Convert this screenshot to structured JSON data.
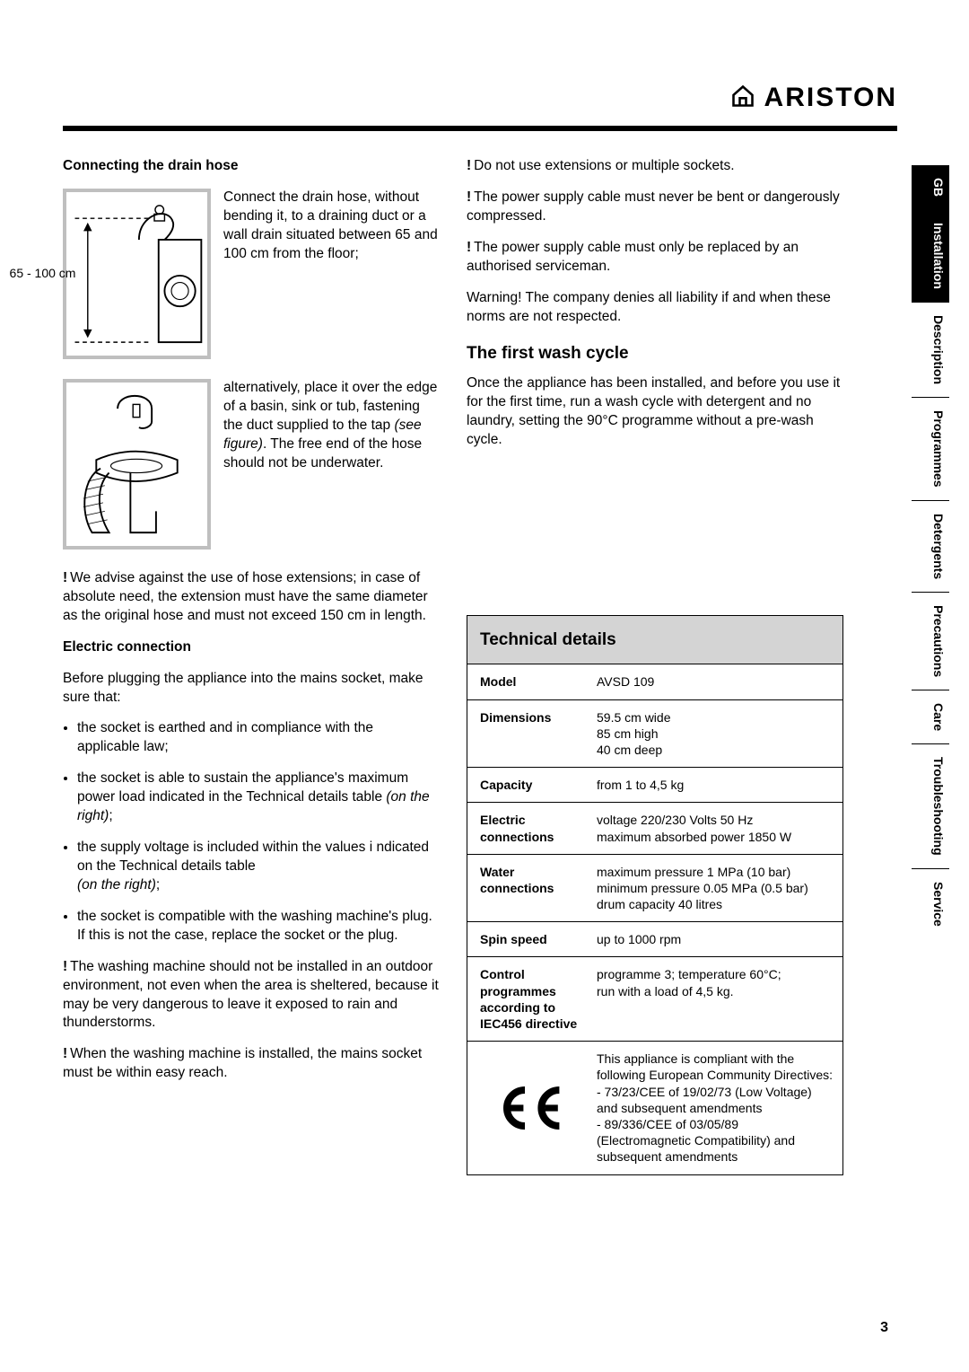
{
  "brand": {
    "name": "ARISTON"
  },
  "page_number": "3",
  "left": {
    "heading_drain": "Connecting the drain hose",
    "fig1_label": "65 - 100 cm",
    "p_drain1": "Connect the drain hose, without bending it, to a draining duct or a wall drain situated between 65 and 100 cm from the floor;",
    "p_drain2a": "alternatively, place it over the edge of a basin, sink or tub, fastening the duct supplied to the tap ",
    "p_drain2_ital": "(see figure)",
    "p_drain2b": ". The free end of the hose should not be underwater.",
    "warn_ext": "We advise against the use of hose extensions; in case of absolute need, the extension must have the same diameter as the original hose and must not exceed 150 cm in length.",
    "heading_elec": "Electric connection",
    "p_elec_intro": "Before plugging the appliance into the mains socket, make sure that:",
    "bullets": [
      {
        "text": "the socket is earthed and in compliance with the applicable law;"
      },
      {
        "text_a": "the socket is able to sustain the appliance's maximum power load indicated in the Technical details table ",
        "ital": "(on the right)",
        "text_b": ";"
      },
      {
        "text_a": "the supply voltage is included within the values i ndicated on the Technical details table",
        "br": true,
        "ital": "(on the right)",
        "text_b": ";"
      },
      {
        "text": "the socket is compatible with the washing machine's plug. If this is not the case, replace the socket or the plug."
      }
    ],
    "warn_outdoor": "The washing machine should not be installed in an outdoor environment, not even when the area is sheltered, because it may be very dangerous to leave it exposed to rain and thunderstorms.",
    "warn_reach": "When the washing machine is installed, the mains socket must be within easy reach."
  },
  "right": {
    "warn_sockets": "Do not use extensions or multiple sockets.",
    "warn_cable_bent": "The  power supply cable must never be bent or dangerously compressed.",
    "warn_cable_replace": "The power supply cable must only be replaced by an authorised serviceman.",
    "warning_liability": "Warning! The company denies all liability if and when these norms are not respected.",
    "heading_first_wash": "The first wash cycle",
    "p_first_wash": "Once the appliance has been installed, and before you use it for the first time, run a wash cycle with detergent and no laundry, setting the 90°C programme without a pre-wash cycle.",
    "tech_title": "Technical details",
    "tech_rows": [
      {
        "label": "Model",
        "value": "AVSD 109"
      },
      {
        "label": "Dimensions",
        "value": "59.5 cm wide\n85 cm high\n40 cm deep"
      },
      {
        "label": "Capacity",
        "value": "from 1 to 4,5 kg"
      },
      {
        "label": "Electric connections",
        "value": "voltage 220/230 Volts 50 Hz\nmaximum absorbed power 1850 W"
      },
      {
        "label": "Water connections",
        "value": "maximum pressure 1 MPa (10 bar)\nminimum pressure 0.05 MPa (0.5 bar)\ndrum capacity 40 litres"
      },
      {
        "label": "Spin speed",
        "value": "up to 1000 rpm"
      },
      {
        "label": "Control programmes according to IEC456 directive",
        "value": "programme 3; temperature 60°C;\nrun with a load of 4,5 kg."
      },
      {
        "label": "CE",
        "value": "This appliance is compliant with the following European Community Directives:\n- 73/23/CEE of 19/02/73 (Low Voltage) and subsequent amendments\n- 89/336/CEE of 03/05/89 (Electromagnetic Compatibility) and subsequent amendments",
        "ce": true
      }
    ]
  },
  "tabs": [
    {
      "label": "GB",
      "active": true
    },
    {
      "label": "Installation",
      "active": true
    },
    {
      "label": "Description"
    },
    {
      "label": "Programmes"
    },
    {
      "label": "Detergents"
    },
    {
      "label": "Precautions"
    },
    {
      "label": "Care"
    },
    {
      "label": "Troubleshooting"
    },
    {
      "label": "Service"
    }
  ],
  "colors": {
    "rule": "#000000",
    "figure_border": "#bfbfbf",
    "tech_header_bg": "#d4d4d4",
    "tab_active_bg": "#000000",
    "tab_active_fg": "#ffffff"
  }
}
